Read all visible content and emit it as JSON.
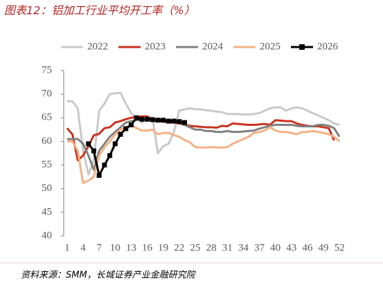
{
  "chart_data": {
    "type": "line",
    "title": "图表12：铝加工行业平均开工率（%）",
    "source": "资料来源：SMM，长城证券产业金融研究院",
    "x": [
      1,
      2,
      3,
      4,
      5,
      6,
      7,
      8,
      9,
      10,
      11,
      12,
      13,
      14,
      15,
      16,
      17,
      18,
      19,
      20,
      21,
      22,
      23,
      24,
      25,
      26,
      27,
      28,
      29,
      30,
      31,
      32,
      33,
      34,
      35,
      36,
      37,
      38,
      39,
      40,
      41,
      42,
      43,
      44,
      45,
      46,
      47,
      48,
      49,
      50,
      51,
      52
    ],
    "xlim": [
      0.5,
      52.5
    ],
    "xticks": [
      1,
      4,
      7,
      10,
      13,
      16,
      19,
      22,
      25,
      28,
      31,
      34,
      37,
      40,
      43,
      46,
      49,
      52
    ],
    "ylim": [
      40,
      75
    ],
    "yticks": [
      40,
      45,
      50,
      55,
      60,
      65,
      70,
      75
    ],
    "grid": false,
    "legend": "top",
    "series": [
      {
        "name": "2022",
        "color": "#c9c9c9",
        "values": [
          68.5,
          68.5,
          67,
          58,
          53,
          56,
          66.5,
          68,
          70,
          70.2,
          70.3,
          68,
          66,
          65,
          64,
          65,
          65,
          57.5,
          59,
          59.5,
          62,
          66.5,
          66.8,
          67,
          66.8,
          66.8,
          66.6,
          66.5,
          66.3,
          66.2,
          65.8,
          65.8,
          65.8,
          65.7,
          65.7,
          65.8,
          66,
          66.5,
          67,
          67.2,
          67.2,
          66.5,
          67,
          67.2,
          67,
          66.5,
          66,
          65.5,
          65,
          64.5,
          63.8,
          63.5
        ]
      },
      {
        "name": "2023",
        "color": "#c8321e",
        "values": [
          62.8,
          61.5,
          56,
          57,
          59,
          61.3,
          61.6,
          62.8,
          63,
          64,
          64.3,
          64.7,
          65,
          65.2,
          65.3,
          65.3,
          64.5,
          64.3,
          64.2,
          64,
          64,
          63.8,
          63.5,
          63.3,
          63.2,
          63.1,
          63,
          63,
          62.9,
          63.3,
          63.2,
          63.8,
          63.7,
          63.6,
          63.5,
          63.5,
          63.6,
          63.7,
          63.5,
          64.5,
          64.4,
          64.3,
          64.3,
          63.8,
          63.5,
          63.3,
          63.2,
          63.2,
          63,
          62.8,
          60.2,
          null
        ]
      },
      {
        "name": "2024",
        "color": "#808080",
        "values": [
          60.5,
          60.5,
          60.5,
          59.5,
          57,
          54,
          58,
          59.5,
          61,
          62,
          63,
          64,
          64.3,
          64.5,
          64.6,
          64.7,
          64.7,
          64.6,
          64.5,
          64.4,
          64.3,
          64,
          63.5,
          63,
          62.5,
          62.5,
          62.2,
          62.2,
          62,
          62,
          62.2,
          62,
          62,
          62.1,
          62.2,
          62.3,
          62.7,
          63,
          63.3,
          63.5,
          63.5,
          63.5,
          63.5,
          63.3,
          63.2,
          63.2,
          63.2,
          63.5,
          63.5,
          63.3,
          62.8,
          61
        ]
      },
      {
        "name": "2025",
        "color": "#f4b183",
        "values": [
          60,
          60,
          58,
          51.2,
          51.7,
          52.5,
          57,
          58.7,
          60,
          61.5,
          62.5,
          63,
          63.5,
          62.8,
          62.3,
          62.3,
          62.5,
          61.5,
          61.8,
          61.8,
          61.3,
          61,
          60.3,
          59.8,
          58.8,
          58.7,
          58.7,
          58.8,
          58.7,
          58.7,
          58.8,
          59.5,
          60,
          60.5,
          61,
          61.8,
          62,
          62.3,
          63,
          62.3,
          62,
          62,
          61.8,
          61.5,
          62,
          62,
          62.2,
          62,
          61.8,
          61.5,
          61,
          60
        ]
      },
      {
        "name": "2026",
        "color": "#000000",
        "marker": "square",
        "values": [
          null,
          null,
          null,
          null,
          59.5,
          58,
          52.8,
          55,
          57,
          59.5,
          61.5,
          62.7,
          63.5,
          65,
          64.7,
          64.7,
          64.6,
          64.5,
          64.5,
          64.3,
          64.3,
          64.2,
          64,
          null,
          null,
          null,
          null,
          null,
          null,
          null,
          null,
          null,
          null,
          null,
          null,
          null,
          null,
          null,
          null,
          null,
          null,
          null,
          null,
          null,
          null,
          null,
          null,
          null,
          null,
          null,
          null,
          null
        ]
      }
    ]
  }
}
